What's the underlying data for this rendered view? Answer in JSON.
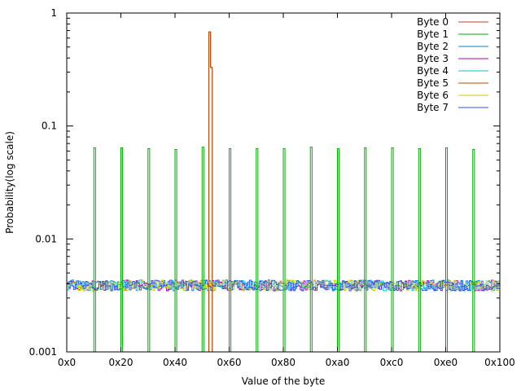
{
  "chart_data": {
    "type": "line",
    "title": "",
    "xlabel": "Value of the byte",
    "ylabel": "Probability(log scale)",
    "x_scale": "linear",
    "y_scale": "log",
    "xlim": [
      0,
      256
    ],
    "ylim": [
      0.001,
      1
    ],
    "grid": false,
    "legend_position": "top-right",
    "x_ticks": [
      {
        "value": 0,
        "label": "0x0"
      },
      {
        "value": 32,
        "label": "0x20"
      },
      {
        "value": 64,
        "label": "0x40"
      },
      {
        "value": 96,
        "label": "0x60"
      },
      {
        "value": 128,
        "label": "0x80"
      },
      {
        "value": 160,
        "label": "0xa0"
      },
      {
        "value": 192,
        "label": "0xc0"
      },
      {
        "value": 224,
        "label": "0xe0"
      },
      {
        "value": 256,
        "label": "0x100"
      }
    ],
    "y_ticks": [
      {
        "value": 0.001,
        "label": "0.001"
      },
      {
        "value": 0.01,
        "label": "0.01"
      },
      {
        "value": 0.1,
        "label": "0.1"
      },
      {
        "value": 1,
        "label": "1"
      }
    ],
    "series": [
      {
        "name": "Byte 0",
        "color": "#c0392b",
        "baseline": 0.001,
        "points": [
          {
            "x": 84,
            "y": 0.68
          },
          {
            "x": 85,
            "y": 0.33
          }
        ]
      },
      {
        "name": "Byte 1",
        "color": "#00aa00",
        "baseline": 0.001,
        "points": [
          {
            "x": 16,
            "y": 0.064
          },
          {
            "x": 32,
            "y": 0.064
          },
          {
            "x": 48,
            "y": 0.063
          },
          {
            "x": 64,
            "y": 0.062
          },
          {
            "x": 80,
            "y": 0.065
          },
          {
            "x": 96,
            "y": 0.063
          },
          {
            "x": 112,
            "y": 0.063
          },
          {
            "x": 128,
            "y": 0.063
          },
          {
            "x": 144,
            "y": 0.065
          },
          {
            "x": 160,
            "y": 0.063
          },
          {
            "x": 176,
            "y": 0.064
          },
          {
            "x": 192,
            "y": 0.064
          },
          {
            "x": 208,
            "y": 0.063
          },
          {
            "x": 224,
            "y": 0.064
          },
          {
            "x": 240,
            "y": 0.062
          }
        ]
      },
      {
        "name": "Byte 2",
        "color": "#1e7fb4",
        "baseline": 0.0039,
        "points": []
      },
      {
        "name": "Byte 3",
        "color": "#b200b2",
        "baseline": 0.0039,
        "points": []
      },
      {
        "name": "Byte 4",
        "color": "#00c8c8",
        "baseline": 0.0039,
        "points": []
      },
      {
        "name": "Byte 5",
        "color": "#b84a00",
        "baseline": 0.001,
        "points": [
          {
            "x": 84,
            "y": 0.68
          },
          {
            "x": 85,
            "y": 0.33
          }
        ]
      },
      {
        "name": "Byte 6",
        "color": "#c8c800",
        "baseline": 0.0039,
        "points": []
      },
      {
        "name": "Byte 7",
        "color": "#2a5adc",
        "baseline": 0.0039,
        "points": []
      }
    ]
  }
}
